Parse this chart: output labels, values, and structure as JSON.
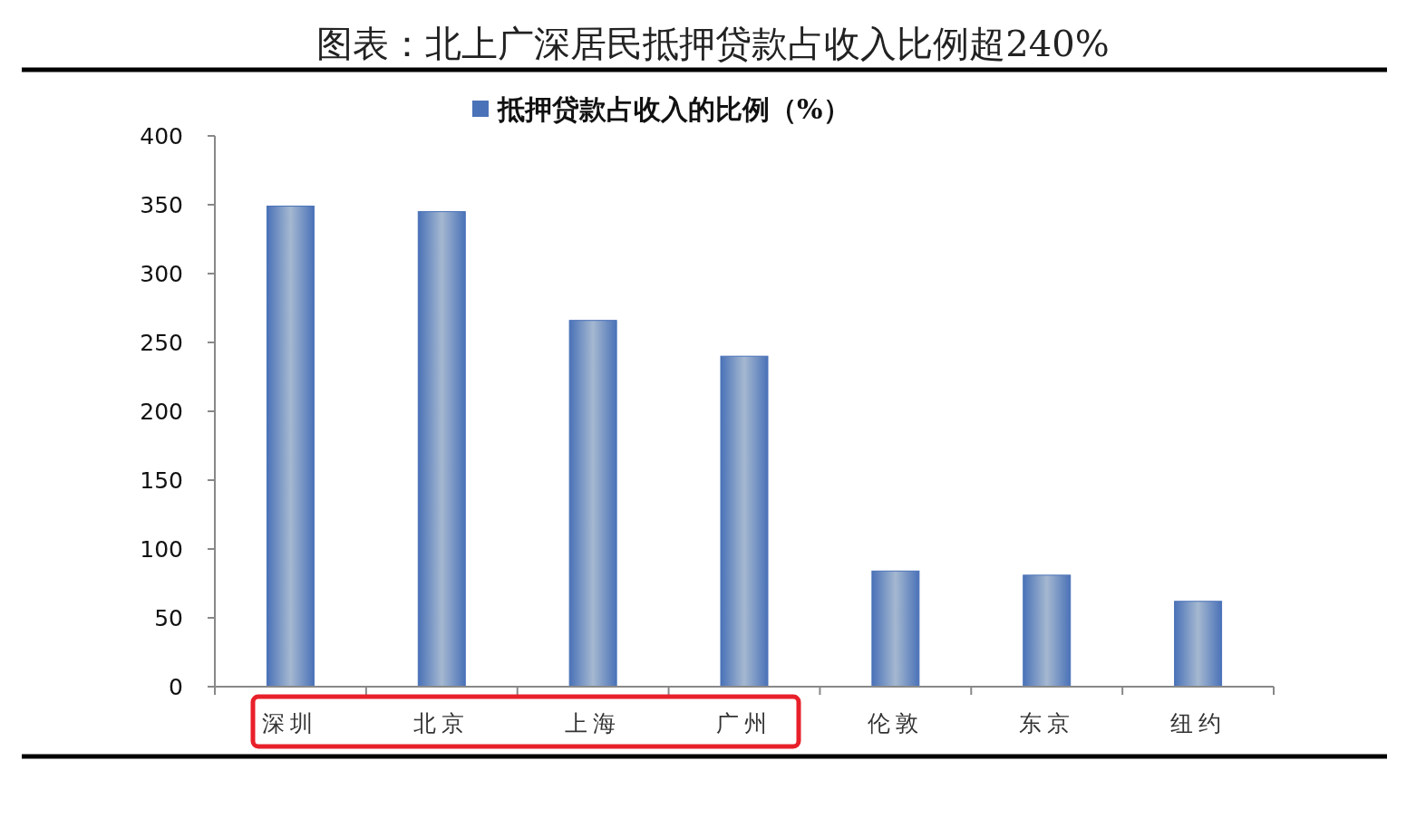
{
  "chart_data": {
    "type": "bar",
    "title": "图表：北上广深居民抵押贷款占收入比例超240%",
    "categories": [
      "深圳",
      "北京",
      "上海",
      "广州",
      "伦敦",
      "东京",
      "纽约"
    ],
    "series": [
      {
        "name": "抵押贷款占收入的比例（%）",
        "color": "#4a72b8",
        "values": [
          349,
          345,
          266,
          240,
          84,
          81,
          62
        ]
      }
    ],
    "ylim": [
      0,
      400
    ],
    "yticks": [
      0,
      50,
      100,
      150,
      200,
      250,
      300,
      350,
      400
    ],
    "grid": false,
    "legend": "top"
  }
}
